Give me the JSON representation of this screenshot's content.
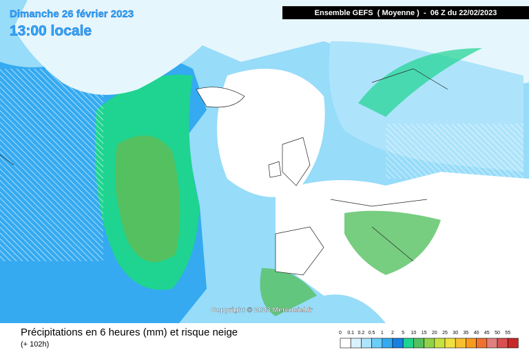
{
  "header": {
    "date": "Dimanche 26 février 2023",
    "time": "13:00 locale",
    "model": "Ensemble GEFS  ( Moyenne )  -  06 Z du 22/02/2023"
  },
  "copyright": "Copyright © 2023 Meteociel.fr",
  "footer": {
    "caption": "Précipitations en 6 heures (mm) et risque neige",
    "lead": "(+ 102h)"
  },
  "legend": [
    {
      "label": "0",
      "color": "#ffffff"
    },
    {
      "label": "0.1",
      "color": "#d9f3fd"
    },
    {
      "label": "0.2",
      "color": "#aee4fb"
    },
    {
      "label": "0.5",
      "color": "#6ccdf7"
    },
    {
      "label": "1",
      "color": "#35aaf0"
    },
    {
      "label": "2",
      "color": "#1a80e0"
    },
    {
      "label": "5",
      "color": "#1ed490"
    },
    {
      "label": "10",
      "color": "#55c060"
    },
    {
      "label": "15",
      "color": "#8fd24a"
    },
    {
      "label": "20",
      "color": "#c8e040"
    },
    {
      "label": "25",
      "color": "#f0e040"
    },
    {
      "label": "30",
      "color": "#f8c030"
    },
    {
      "label": "35",
      "color": "#f89a20"
    },
    {
      "label": "40",
      "color": "#f07030"
    },
    {
      "label": "45",
      "color": "#e08080"
    },
    {
      "label": "50",
      "color": "#d85050"
    },
    {
      "label": "55",
      "color": "#c82828"
    }
  ]
}
